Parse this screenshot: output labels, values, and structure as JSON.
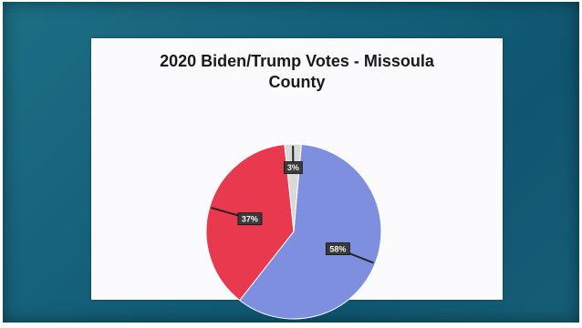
{
  "chart_data": {
    "type": "pie",
    "title_lines": [
      "2020 Biden/Trump Votes - Missoula",
      "County"
    ],
    "slices": [
      {
        "label": "58%",
        "value": 58,
        "color": "#7f8fe0"
      },
      {
        "label": "37%",
        "value": 37,
        "color": "#e8394e"
      },
      {
        "label": "3%",
        "value": 3,
        "color": "#d9d9d9"
      }
    ]
  }
}
